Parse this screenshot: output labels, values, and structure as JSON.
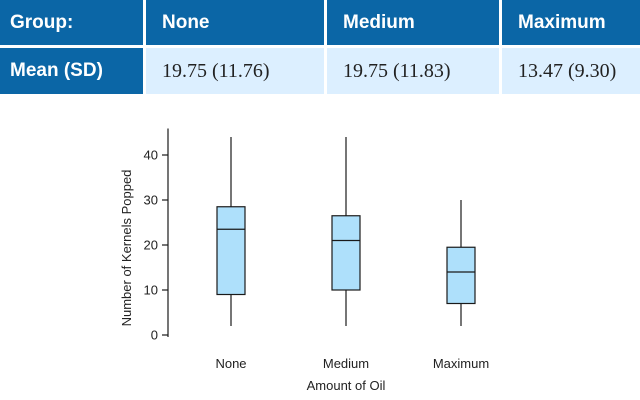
{
  "table": {
    "row_header": "Group:",
    "mean_header": "Mean (SD)",
    "groups": [
      "None",
      "Medium",
      "Maximum"
    ],
    "means": [
      "19.75 (11.76)",
      "19.75 (11.83)",
      "13.47 (9.30)"
    ]
  },
  "chart_data": {
    "type": "boxplot",
    "xlabel": "Amount of Oil",
    "ylabel": "Number of Kernels Popped",
    "categories": [
      "None",
      "Medium",
      "Maximum"
    ],
    "ylim": [
      0,
      45
    ],
    "yticks": [
      0,
      10,
      20,
      30,
      40
    ],
    "boxes": [
      {
        "category": "None",
        "min": 2,
        "q1": 9,
        "median": 23.5,
        "q3": 28.5,
        "max": 44
      },
      {
        "category": "Medium",
        "min": 2,
        "q1": 10,
        "median": 21,
        "q3": 26.5,
        "max": 44
      },
      {
        "category": "Maximum",
        "min": 2,
        "q1": 7,
        "median": 14,
        "q3": 19.5,
        "max": 30
      }
    ],
    "grid": false,
    "colors": {
      "box_fill": "#aee0fb",
      "stroke": "#1a1a1a",
      "header_bg": "#0b66a6",
      "cell_bg": "#dcefff"
    }
  }
}
